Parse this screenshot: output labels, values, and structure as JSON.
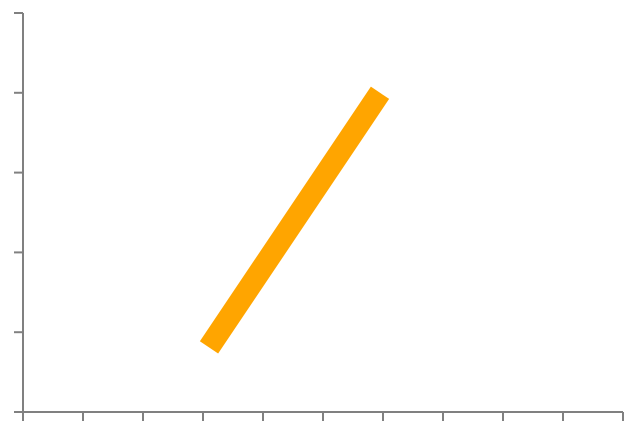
{
  "chart_data": {
    "type": "line",
    "xlim": [
      0,
      10
    ],
    "ylim": [
      0,
      5
    ],
    "x_ticks": [
      0,
      1,
      2,
      3,
      4,
      5,
      6,
      7,
      8,
      9,
      10
    ],
    "y_ticks": [
      0,
      1,
      2,
      3,
      4,
      5
    ],
    "series": [
      {
        "x": [
          3.1,
          5.95
        ],
        "y": [
          0.81,
          4.0
        ],
        "color": "#FFA500"
      }
    ],
    "tick_labels_shown": false,
    "grid": false,
    "legend": "none",
    "axis_color": "#808080"
  }
}
